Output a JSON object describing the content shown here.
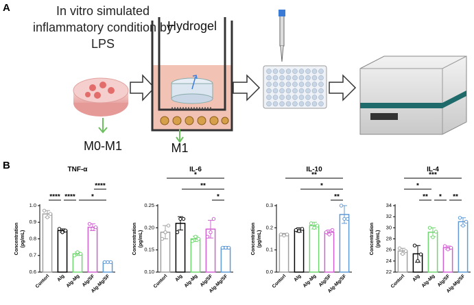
{
  "panel_labels": [
    "A",
    "B"
  ],
  "schematic": {
    "caption_lines": [
      "In vitro simulated",
      "inflammatory condition by",
      "LPS"
    ],
    "hydrogel": "Hydrogel",
    "dish_label": "M0-M1",
    "well_label": "M1"
  },
  "chart_data": [
    {
      "type": "bar",
      "title": "TNF-α",
      "ylabel_lines": [
        "Concentration",
        "(pg/mL)"
      ],
      "categories": [
        "Contorl",
        "Alg",
        "Alg-Mg",
        "Alg/SF",
        "Alg-Mg/SF"
      ],
      "colors": [
        "#a0a0a0",
        "#000000",
        "#6fd66f",
        "#d25fd2",
        "#5f9ad6"
      ],
      "values": [
        0.95,
        0.85,
        0.71,
        0.87,
        0.66
      ],
      "errors": [
        0.02,
        0.01,
        0.01,
        0.02,
        0.005
      ],
      "points": [
        [
          0.97,
          0.93,
          0.95
        ],
        [
          0.86,
          0.84,
          0.85
        ],
        [
          0.7,
          0.72,
          0.71
        ],
        [
          0.89,
          0.86,
          0.87
        ],
        [
          0.66,
          0.66,
          0.66
        ]
      ],
      "ylim": [
        0.6,
        1.0
      ],
      "yticks": [
        0.6,
        0.7,
        0.8,
        0.9,
        {
          "value": 1.0,
          "label": "1.0"
        }
      ],
      "brackets": [
        {
          "pair": [
            0,
            1
          ],
          "label": "****"
        },
        {
          "pair": [
            1,
            2
          ],
          "label": "****"
        },
        {
          "pair": [
            2,
            4
          ],
          "label": "*"
        },
        {
          "pair": [
            3,
            4
          ],
          "label": "****"
        }
      ]
    },
    {
      "type": "bar",
      "title": "IL-6",
      "ylabel_lines": [
        "Concentration",
        "(pg/mL)"
      ],
      "categories": [
        "Contorl",
        "Alg",
        "Alg-Mg",
        "Alg/SF",
        "Alg-Mg/SF"
      ],
      "colors": [
        "#a0a0a0",
        "#000000",
        "#6fd66f",
        "#d25fd2",
        "#5f9ad6"
      ],
      "values": [
        0.19,
        0.21,
        0.175,
        0.197,
        0.155
      ],
      "errors": [
        0.015,
        0.015,
        0.006,
        0.02,
        0.003
      ],
      "points": [
        [
          0.175,
          0.19,
          0.205
        ],
        [
          0.19,
          0.22,
          0.22
        ],
        [
          0.17,
          0.18,
          0.175
        ],
        [
          0.18,
          0.19,
          0.22
        ],
        [
          0.155,
          0.155,
          0.155
        ]
      ],
      "ylim": [
        0.1,
        0.25
      ],
      "yticks": [
        {
          "value": 0.1,
          "label": "0.10"
        },
        0.15,
        {
          "value": 0.2,
          "label": "0.20"
        },
        0.25
      ],
      "brackets": [
        {
          "pair": [
            3,
            4
          ],
          "label": "*"
        },
        {
          "pair": [
            1,
            4
          ],
          "label": "**"
        },
        {
          "pair": [
            0,
            4
          ],
          "label": "*"
        }
      ]
    },
    {
      "type": "bar",
      "title": "IL-10",
      "ylabel_lines": [
        "Concentration",
        "(pg/mL)"
      ],
      "categories": [
        "Contorl",
        "Alg",
        "Alg-Mg",
        "Alg/SF",
        "Alg-Mg/SF"
      ],
      "colors": [
        "#a0a0a0",
        "#000000",
        "#6fd66f",
        "#d25fd2",
        "#5f9ad6"
      ],
      "values": [
        0.17,
        0.19,
        0.21,
        0.18,
        0.26
      ],
      "errors": [
        0.005,
        0.01,
        0.015,
        0.01,
        0.04
      ],
      "points": [
        [
          0.17,
          0.165,
          0.17
        ],
        [
          0.19,
          0.185,
          0.195
        ],
        [
          0.22,
          0.2,
          0.21
        ],
        [
          0.18,
          0.17,
          0.19
        ],
        [
          0.3,
          0.24,
          0.24
        ]
      ],
      "ylim": [
        0.0,
        0.3
      ],
      "yticks": [
        {
          "value": 0.0,
          "label": "0.0"
        },
        0.1,
        0.2,
        0.3
      ],
      "brackets": [
        {
          "pair": [
            3,
            4
          ],
          "label": "**"
        },
        {
          "pair": [
            1,
            4
          ],
          "label": "*"
        },
        {
          "pair": [
            0,
            4
          ],
          "label": "**"
        }
      ]
    },
    {
      "type": "bar",
      "title": "IL-4",
      "ylabel_lines": [
        "Concentration",
        "(pg/mL)"
      ],
      "categories": [
        "Contorl",
        "Alg",
        "Alg-Mg",
        "Alg/SF",
        "Alg-Mg/SF"
      ],
      "colors": [
        "#a0a0a0",
        "#000000",
        "#6fd66f",
        "#d25fd2",
        "#5f9ad6"
      ],
      "values": [
        25.8,
        25.3,
        29.2,
        26.4,
        31.1
      ],
      "errors": [
        0.5,
        1.5,
        0.8,
        0.3,
        0.7
      ],
      "points": [
        [
          26.3,
          25.3,
          25.8
        ],
        [
          26.8,
          24.0,
          25.2
        ],
        [
          30.0,
          28.3,
          29.3
        ],
        [
          26.7,
          26.1,
          26.4
        ],
        [
          31.8,
          30.4,
          31.1
        ]
      ],
      "ylim": [
        22,
        34
      ],
      "yticks": [
        22,
        24,
        26,
        28,
        30,
        32,
        34
      ],
      "brackets": [
        {
          "pair": [
            1,
            2
          ],
          "label": "**"
        },
        {
          "pair": [
            2,
            3
          ],
          "label": "*"
        },
        {
          "pair": [
            3,
            4
          ],
          "label": "**"
        },
        {
          "pair": [
            0,
            2
          ],
          "label": "*"
        },
        {
          "pair": [
            0,
            4
          ],
          "label": "***"
        }
      ]
    }
  ]
}
